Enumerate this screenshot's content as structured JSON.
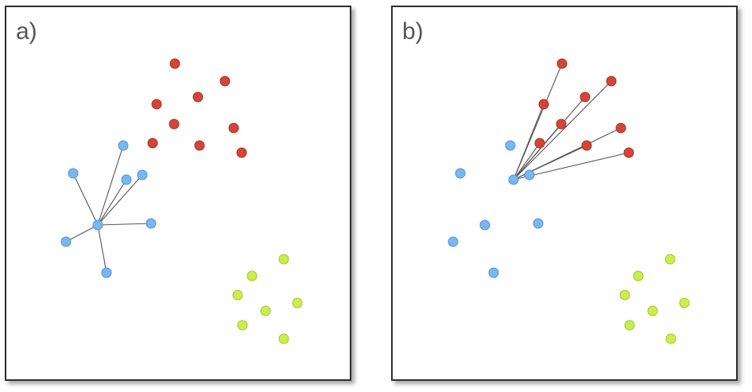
{
  "figure": {
    "panels": [
      {
        "id": "a",
        "label": "a)",
        "center_index": 4,
        "links_from_center": "blue",
        "clusters": {
          "red": [
            [
              212,
              71
            ],
            [
              275,
              93
            ],
            [
              241,
              113
            ],
            [
              189,
              122
            ],
            [
              211,
              147
            ],
            [
              286,
              152
            ],
            [
              184,
              171
            ],
            [
              243,
              174
            ],
            [
              296,
              183
            ]
          ],
          "blue": [
            [
              147,
              174
            ],
            [
              84,
              209
            ],
            [
              171,
              211
            ],
            [
              151,
              217
            ],
            [
              115,
              274
            ],
            [
              182,
              272
            ],
            [
              75,
              295
            ],
            [
              126,
              334
            ]
          ],
          "green": [
            [
              349,
              317
            ],
            [
              309,
              338
            ],
            [
              291,
              362
            ],
            [
              366,
              372
            ],
            [
              326,
              382
            ],
            [
              297,
              400
            ],
            [
              349,
              417
            ]
          ]
        }
      },
      {
        "id": "b",
        "label": "b)",
        "center_index": 2,
        "links_from_center": "red",
        "clusters": {
          "red": [
            [
              213,
              71
            ],
            [
              275,
              93
            ],
            [
              242,
              113
            ],
            [
              190,
              122
            ],
            [
              212,
              147
            ],
            [
              287,
              152
            ],
            [
              185,
              171
            ],
            [
              244,
              174
            ],
            [
              297,
              183
            ]
          ],
          "blue": [
            [
              148,
              174
            ],
            [
              85,
              209
            ],
            [
              152,
              217
            ],
            [
              172,
              211
            ],
            [
              116,
              274
            ],
            [
              183,
              272
            ],
            [
              76,
              295
            ],
            [
              127,
              334
            ]
          ],
          "green": [
            [
              349,
              317
            ],
            [
              309,
              338
            ],
            [
              292,
              362
            ],
            [
              367,
              372
            ],
            [
              327,
              382
            ],
            [
              298,
              400
            ],
            [
              350,
              417
            ]
          ]
        }
      }
    ],
    "colors": {
      "red": "#d44536",
      "red_stroke": "#a8332a",
      "blue": "#78b8ee",
      "blue_stroke": "#4f95d4",
      "green": "#c8ef4a",
      "green_stroke": "#9fc72f",
      "link": "#555555"
    }
  }
}
